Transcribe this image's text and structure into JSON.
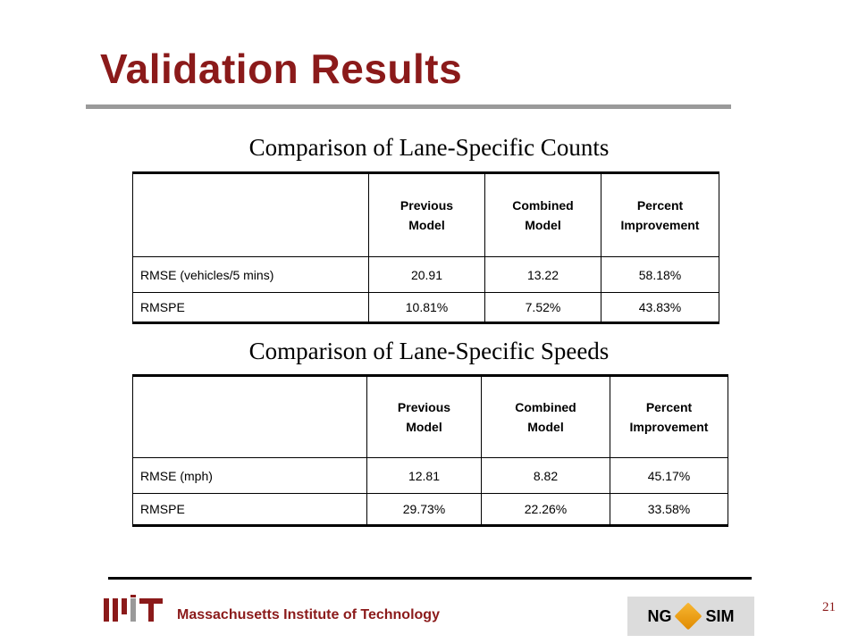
{
  "slide": {
    "title": "Validation Results",
    "page_number": "21"
  },
  "counts_table": {
    "heading": "Comparison of Lane-Specific Counts",
    "columns": [
      "",
      "Previous Model",
      "Combined Model",
      "Percent Improvement"
    ],
    "rows": [
      {
        "label": "RMSE (vehicles/5 mins)",
        "previous": "20.91",
        "combined": "13.22",
        "improvement": "58.18%"
      },
      {
        "label": "RMSPE",
        "previous": "10.81%",
        "combined": "7.52%",
        "improvement": "43.83%"
      }
    ]
  },
  "speeds_table": {
    "heading": "Comparison of Lane-Specific Speeds",
    "columns": [
      "",
      "Previous Model",
      "Combined Model",
      "Percent Improvement"
    ],
    "rows": [
      {
        "label": "RMSE (mph)",
        "previous": "12.81",
        "combined": "8.82",
        "improvement": "45.17%"
      },
      {
        "label": "RMSPE",
        "previous": "29.73%",
        "combined": "22.26%",
        "improvement": "33.58%"
      }
    ]
  },
  "footer": {
    "institution": "Massachusetts Institute of Technology",
    "partner_logo_left": "NG",
    "partner_logo_right": "SIM",
    "mit_icon": "mit-logo-icon",
    "ngsim_icon": "ngsim-cube-icon",
    "accent_color": "#8b1a1a"
  }
}
